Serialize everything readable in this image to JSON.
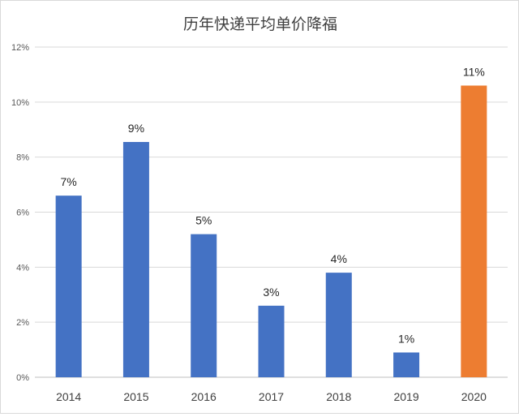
{
  "chart_data": {
    "type": "bar",
    "title": "历年快递平均单价降福",
    "xlabel": "",
    "ylabel": "",
    "categories": [
      "2014",
      "2015",
      "2016",
      "2017",
      "2018",
      "2019",
      "2020"
    ],
    "values": [
      6.6,
      8.55,
      5.2,
      2.6,
      3.8,
      0.9,
      10.6
    ],
    "data_labels": [
      "7%",
      "9%",
      "5%",
      "3%",
      "4%",
      "1%",
      "11%"
    ],
    "bar_colors": [
      "#4472c4",
      "#4472c4",
      "#4472c4",
      "#4472c4",
      "#4472c4",
      "#4472c4",
      "#ed7d31"
    ],
    "ylim": [
      0,
      12
    ],
    "yticks": [
      0,
      2,
      4,
      6,
      8,
      10,
      12
    ],
    "ytick_labels": [
      "0%",
      "2%",
      "4%",
      "6%",
      "8%",
      "10%",
      "12%"
    ],
    "grid": true,
    "legend": "none"
  }
}
